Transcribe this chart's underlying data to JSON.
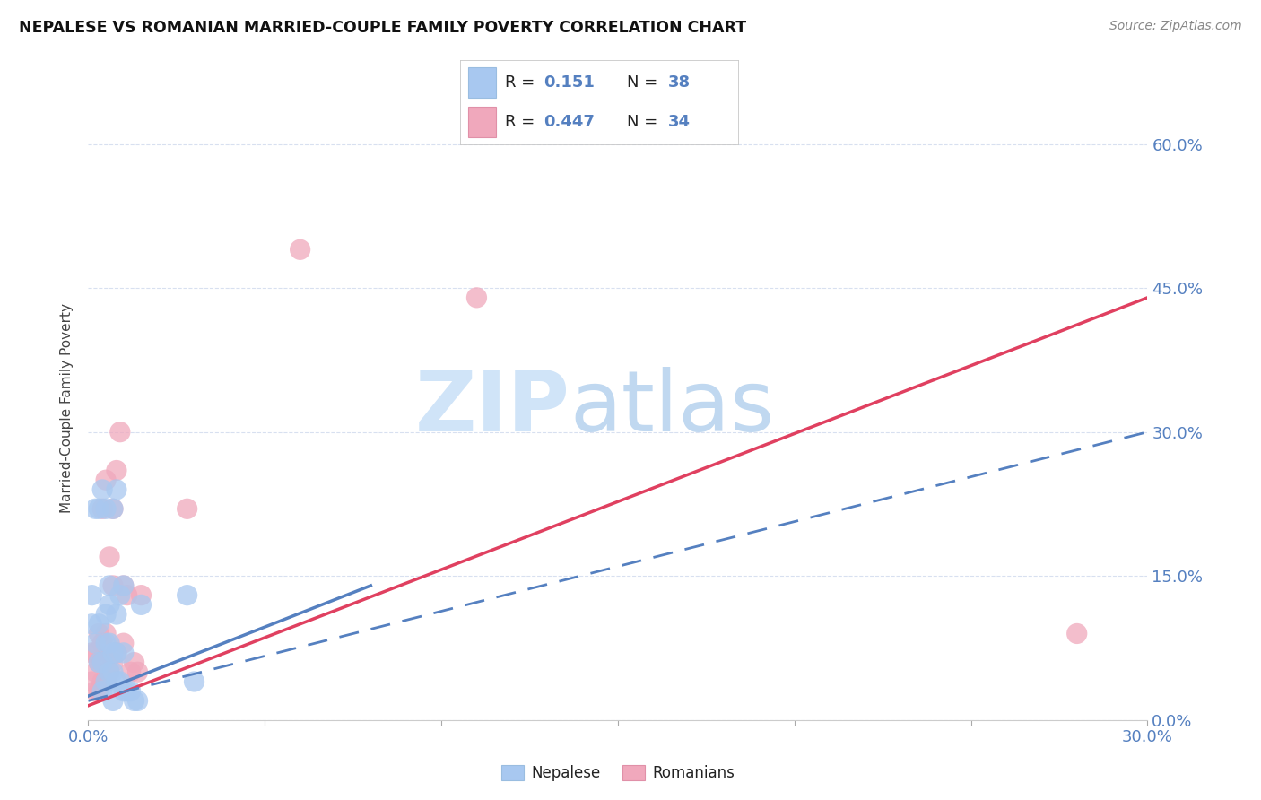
{
  "title": "NEPALESE VS ROMANIAN MARRIED-COUPLE FAMILY POVERTY CORRELATION CHART",
  "source": "Source: ZipAtlas.com",
  "ylabel": "Married-Couple Family Poverty",
  "xlim": [
    0.0,
    0.3
  ],
  "ylim": [
    0.0,
    0.65
  ],
  "yticks": [
    0.0,
    0.15,
    0.3,
    0.45,
    0.6
  ],
  "ytick_labels": [
    "0.0%",
    "15.0%",
    "30.0%",
    "45.0%",
    "60.0%"
  ],
  "xtick_labels": [
    "0.0%",
    "30.0%"
  ],
  "xtick_positions": [
    0.0,
    0.3
  ],
  "nepalese_color": "#a8c8f0",
  "romanian_color": "#f0a8bc",
  "nepalese_line_color": "#5580c0",
  "romanian_line_color": "#e04060",
  "grid_color": "#d8e0f0",
  "nepalese_x": [
    0.001,
    0.001,
    0.002,
    0.002,
    0.003,
    0.003,
    0.003,
    0.004,
    0.004,
    0.004,
    0.005,
    0.005,
    0.005,
    0.005,
    0.006,
    0.006,
    0.006,
    0.006,
    0.007,
    0.007,
    0.007,
    0.007,
    0.008,
    0.008,
    0.008,
    0.008,
    0.009,
    0.009,
    0.01,
    0.01,
    0.01,
    0.011,
    0.012,
    0.013,
    0.014,
    0.015,
    0.028,
    0.03
  ],
  "nepalese_y": [
    0.1,
    0.13,
    0.08,
    0.22,
    0.06,
    0.1,
    0.22,
    0.03,
    0.06,
    0.24,
    0.04,
    0.08,
    0.11,
    0.22,
    0.05,
    0.08,
    0.12,
    0.14,
    0.02,
    0.05,
    0.07,
    0.22,
    0.04,
    0.07,
    0.11,
    0.24,
    0.04,
    0.13,
    0.03,
    0.07,
    0.14,
    0.03,
    0.03,
    0.02,
    0.02,
    0.12,
    0.13,
    0.04
  ],
  "romanian_x": [
    0.001,
    0.001,
    0.002,
    0.002,
    0.002,
    0.003,
    0.003,
    0.003,
    0.004,
    0.004,
    0.004,
    0.004,
    0.005,
    0.005,
    0.005,
    0.006,
    0.006,
    0.007,
    0.007,
    0.007,
    0.008,
    0.008,
    0.009,
    0.01,
    0.01,
    0.011,
    0.012,
    0.013,
    0.014,
    0.015,
    0.028,
    0.06,
    0.11,
    0.28
  ],
  "romanian_y": [
    0.04,
    0.07,
    0.03,
    0.05,
    0.07,
    0.03,
    0.06,
    0.09,
    0.04,
    0.06,
    0.08,
    0.22,
    0.04,
    0.09,
    0.25,
    0.05,
    0.17,
    0.06,
    0.14,
    0.22,
    0.07,
    0.26,
    0.3,
    0.08,
    0.14,
    0.13,
    0.05,
    0.06,
    0.05,
    0.13,
    0.22,
    0.49,
    0.44,
    0.09
  ],
  "neo_line_x0": 0.0,
  "neo_line_y0": 0.02,
  "neo_line_x1": 0.3,
  "neo_line_y1": 0.3,
  "rom_line_x0": 0.0,
  "rom_line_y0": 0.015,
  "rom_line_x1": 0.3,
  "rom_line_y1": 0.44,
  "neo_trendline_x0": 0.0,
  "neo_trendline_y0": 0.025,
  "neo_trendline_x1": 0.08,
  "neo_trendline_y1": 0.14,
  "watermark_zip_color": "#d0e4f8",
  "watermark_atlas_color": "#c0d8f0"
}
